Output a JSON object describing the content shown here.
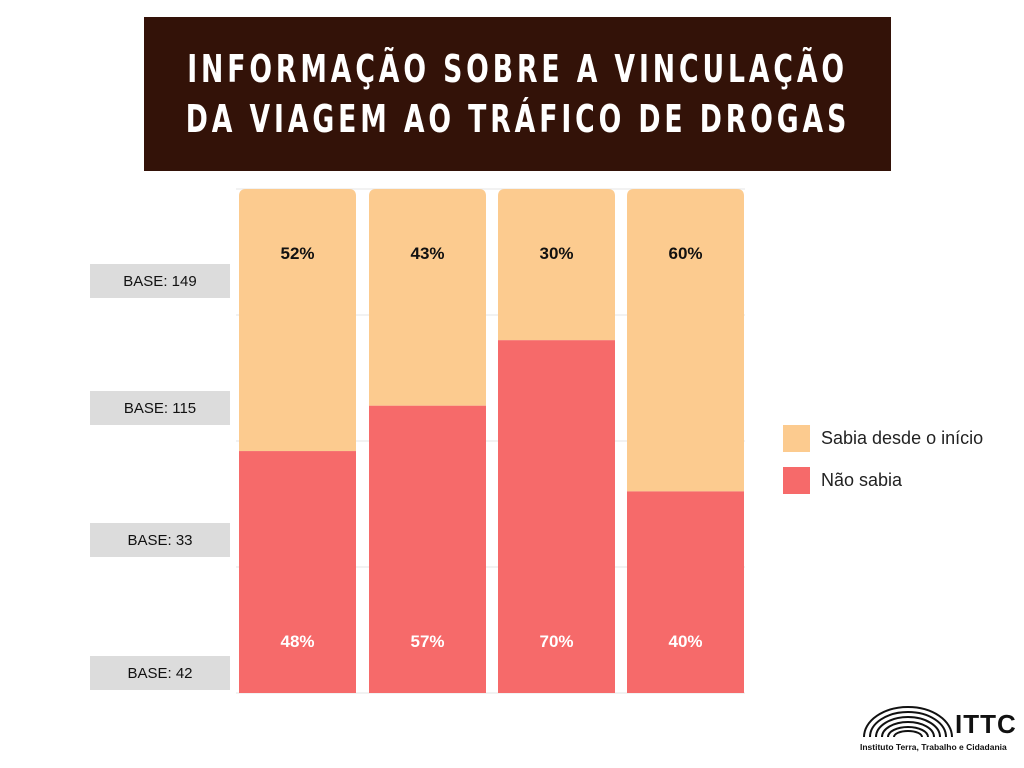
{
  "title": {
    "line1": "INFORMAÇÃO SOBRE A VINCULAÇÃO",
    "line2": "DA VIAGEM AO TRÁFICO DE DROGAS"
  },
  "bases": [
    "BASE: 149",
    "BASE: 115",
    "BASE: 33",
    "BASE: 42"
  ],
  "legend": {
    "items": [
      {
        "label": "Sabia desde o início",
        "color": "#fccb8f"
      },
      {
        "label": "Não sabia",
        "color": "#f66a6a"
      }
    ]
  },
  "logo": {
    "name": "ITTC",
    "subtitle": "Instituto Terra, Trabalho e Cidadania"
  },
  "chart_data": {
    "type": "bar",
    "stacked": true,
    "percent": true,
    "categories": [
      "BASE: 149",
      "BASE: 115",
      "BASE: 33",
      "BASE: 42"
    ],
    "series": [
      {
        "name": "Não sabia",
        "values": [
          48,
          57,
          70,
          40
        ],
        "color": "#f66a6a",
        "labels": [
          "48%",
          "57%",
          "70%",
          "40%"
        ]
      },
      {
        "name": "Sabia desde o início",
        "values": [
          52,
          43,
          30,
          60
        ],
        "color": "#fccb8f",
        "labels": [
          "52%",
          "43%",
          "30%",
          "60%"
        ]
      }
    ],
    "ylim": [
      0,
      100
    ],
    "grid": true,
    "legend_position": "right"
  }
}
